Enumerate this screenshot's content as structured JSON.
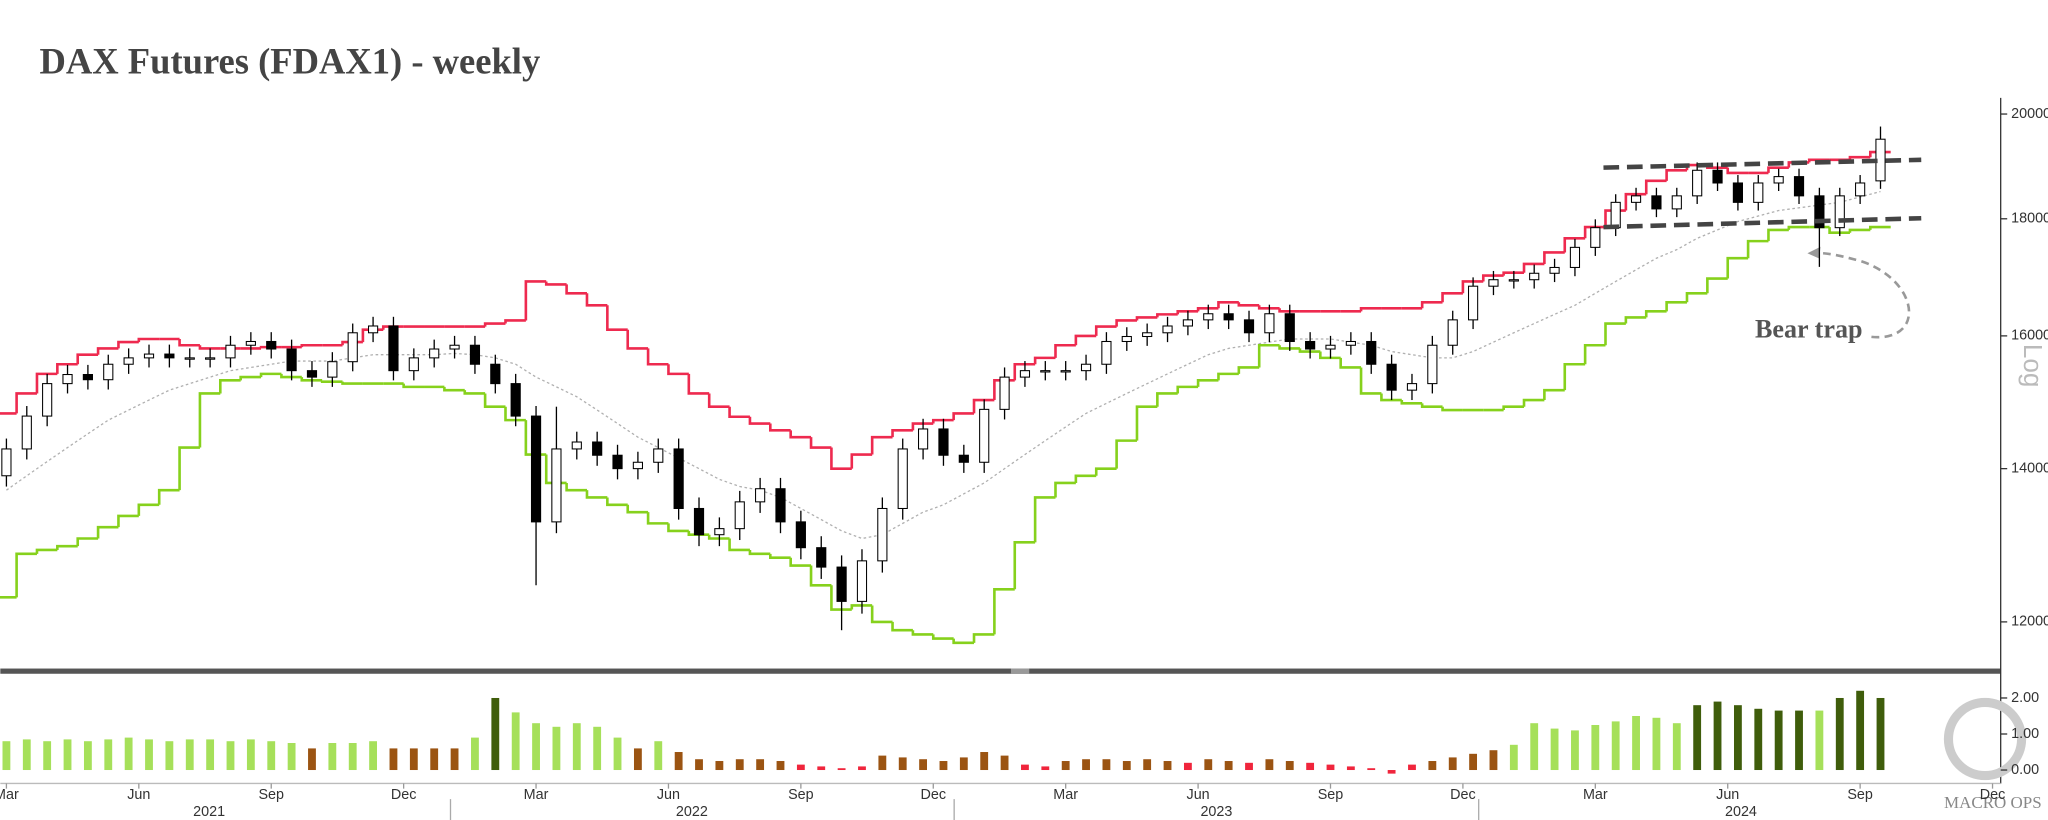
{
  "chart_data": {
    "type": "candlestick",
    "title": "DAX Futures (FDAX1) - weekly",
    "log_scale": true,
    "y_axis_label": "Log",
    "watermark": "MACRO OPS",
    "colors": {
      "up": "#ffffff",
      "down": "#000000",
      "wick": "#000000"
    },
    "x": [
      0,
      2,
      4,
      6,
      8,
      10,
      12,
      14,
      16,
      18,
      20,
      22,
      24,
      26,
      28,
      30,
      32,
      34,
      36,
      38,
      40,
      42,
      44,
      46,
      48,
      50,
      52,
      54,
      56,
      58,
      60,
      62,
      64,
      66,
      68,
      70,
      72,
      74,
      76,
      78,
      80,
      82,
      84,
      86,
      88,
      90,
      92,
      94,
      96,
      98,
      100,
      102,
      104,
      106,
      108,
      110,
      112,
      114,
      116,
      118,
      120,
      122,
      124,
      126,
      128,
      130,
      132,
      134,
      136,
      138,
      140,
      142,
      144,
      146,
      148,
      150,
      152,
      154,
      156,
      158,
      160,
      162,
      164,
      166,
      168,
      170,
      172,
      174,
      176,
      178,
      180,
      182,
      184
    ],
    "open": [
      13900,
      14280,
      14760,
      15250,
      15390,
      15310,
      15550,
      15650,
      15710,
      15650,
      15650,
      15650,
      15850,
      15910,
      15790,
      15450,
      15350,
      15590,
      16050,
      16160,
      15450,
      15650,
      15790,
      15850,
      15550,
      15250,
      14760,
      13270,
      14280,
      14380,
      14190,
      14000,
      14090,
      14280,
      13450,
      13100,
      13180,
      13540,
      13720,
      13270,
      12930,
      12680,
      12250,
      12760,
      13450,
      14280,
      14570,
      14190,
      14090,
      14860,
      15350,
      15450,
      15450,
      15450,
      15550,
      15910,
      15990,
      16050,
      16160,
      16260,
      16360,
      16260,
      16050,
      16360,
      15910,
      15790,
      15850,
      15910,
      15550,
      15150,
      15250,
      15850,
      16260,
      16820,
      16930,
      16930,
      17040,
      17140,
      17490,
      17840,
      18300,
      18420,
      18180,
      18420,
      18900,
      18660,
      18300,
      18660,
      18780,
      18420,
      17840,
      18420,
      18700
    ],
    "high": [
      14430,
      14910,
      15400,
      15540,
      15540,
      15700,
      15800,
      15860,
      15860,
      15800,
      15800,
      16000,
      16060,
      16060,
      15940,
      15600,
      15740,
      16200,
      16310,
      16310,
      15800,
      15940,
      16000,
      16000,
      15700,
      15400,
      14910,
      14900,
      14530,
      14530,
      14340,
      14240,
      14430,
      14430,
      13600,
      13330,
      13690,
      13870,
      13870,
      13420,
      13080,
      12830,
      12910,
      13600,
      14430,
      14720,
      14720,
      14340,
      15010,
      15500,
      15600,
      15600,
      15600,
      15700,
      16060,
      16140,
      16200,
      16310,
      16410,
      16510,
      16510,
      16410,
      16510,
      16510,
      16060,
      16000,
      16060,
      16060,
      15700,
      15400,
      16000,
      16410,
      16970,
      17080,
      17080,
      17190,
      17290,
      17640,
      17990,
      18450,
      18570,
      18570,
      18570,
      19050,
      19050,
      18810,
      18810,
      18930,
      18930,
      18570,
      18570,
      18810,
      19750
    ],
    "low": [
      13750,
      14130,
      14610,
      15100,
      15160,
      15160,
      15400,
      15500,
      15500,
      15500,
      15500,
      15500,
      15700,
      15640,
      15300,
      15200,
      15200,
      15440,
      15900,
      15300,
      15300,
      15500,
      15640,
      15400,
      15100,
      14610,
      12450,
      13120,
      14130,
      14040,
      13850,
      13850,
      13940,
      13300,
      12950,
      12950,
      13030,
      13390,
      13120,
      12780,
      12530,
      11900,
      12100,
      12610,
      13300,
      14130,
      14040,
      13940,
      13940,
      14710,
      15200,
      15300,
      15300,
      15300,
      15400,
      15760,
      15840,
      15900,
      16010,
      16110,
      16110,
      15900,
      15900,
      15760,
      15640,
      15640,
      15700,
      15400,
      15000,
      15000,
      15100,
      15700,
      16110,
      16670,
      16780,
      16780,
      16890,
      16990,
      17340,
      17690,
      18150,
      18030,
      18030,
      18270,
      18510,
      18150,
      18150,
      18510,
      18270,
      17150,
      17690,
      18270,
      18550
    ],
    "close": [
      14280,
      14760,
      15250,
      15390,
      15310,
      15550,
      15650,
      15710,
      15650,
      15650,
      15650,
      15850,
      15910,
      15790,
      15450,
      15350,
      15590,
      16050,
      16160,
      15450,
      15650,
      15790,
      15850,
      15550,
      15250,
      14760,
      13270,
      14280,
      14380,
      14190,
      14000,
      14090,
      14280,
      13450,
      13100,
      13180,
      13540,
      13720,
      13270,
      12930,
      12680,
      12250,
      12760,
      13450,
      14280,
      14570,
      14190,
      14090,
      14860,
      15350,
      15450,
      15450,
      15450,
      15550,
      15910,
      15990,
      16050,
      16160,
      16260,
      16360,
      16260,
      16050,
      16360,
      15910,
      15790,
      15850,
      15910,
      15550,
      15150,
      15250,
      15850,
      16260,
      16820,
      16930,
      16930,
      17040,
      17140,
      17490,
      17840,
      18300,
      18420,
      18180,
      18420,
      18900,
      18660,
      18300,
      18660,
      18780,
      18420,
      17840,
      18420,
      18660,
      19500
    ],
    "bands": {
      "upper": {
        "color": "#ee2a4f",
        "values": [
          14800,
          15100,
          15400,
          15550,
          15700,
          15800,
          15900,
          15950,
          15950,
          15850,
          15800,
          15800,
          15800,
          15820,
          15820,
          15850,
          15850,
          15900,
          16100,
          16150,
          16150,
          16150,
          16150,
          16150,
          16200,
          16250,
          16900,
          16850,
          16700,
          16500,
          16100,
          15800,
          15550,
          15400,
          15100,
          14900,
          14750,
          14650,
          14550,
          14450,
          14300,
          14000,
          14200,
          14450,
          14550,
          14650,
          14700,
          14800,
          15000,
          15300,
          15550,
          15650,
          15850,
          16000,
          16150,
          16250,
          16300,
          16350,
          16400,
          16450,
          16550,
          16500,
          16450,
          16400,
          16400,
          16400,
          16400,
          16450,
          16450,
          16450,
          16550,
          16700,
          16900,
          17000,
          17050,
          17200,
          17400,
          17650,
          17850,
          18150,
          18450,
          18700,
          18900,
          19000,
          18950,
          18850,
          18850,
          18950,
          19050,
          19100,
          19100,
          19150,
          19250
        ]
      },
      "lower": {
        "color": "#86d11c",
        "values": [
          12300,
          12850,
          12900,
          12950,
          13050,
          13200,
          13350,
          13500,
          13700,
          14300,
          15100,
          15300,
          15350,
          15400,
          15350,
          15300,
          15280,
          15250,
          15250,
          15250,
          15200,
          15200,
          15150,
          15100,
          14900,
          14700,
          14200,
          13800,
          13700,
          13600,
          13500,
          13400,
          13250,
          13150,
          13100,
          13050,
          12900,
          12850,
          12800,
          12700,
          12450,
          12150,
          12200,
          12000,
          11900,
          11850,
          11800,
          11750,
          11850,
          12400,
          13000,
          13600,
          13800,
          13900,
          14000,
          14400,
          14900,
          15100,
          15200,
          15300,
          15400,
          15500,
          15850,
          15800,
          15750,
          15650,
          15500,
          15100,
          15000,
          14950,
          14900,
          14850,
          14850,
          14850,
          14900,
          15000,
          15150,
          15550,
          15850,
          16200,
          16300,
          16400,
          16550,
          16700,
          16950,
          17300,
          17600,
          17800,
          17850,
          17850,
          17750,
          17800,
          17850
        ]
      },
      "ma": {
        "color": "#b0b0b0",
        "values": [
          13700,
          13900,
          14100,
          14300,
          14500,
          14700,
          14850,
          15000,
          15150,
          15250,
          15350,
          15450,
          15500,
          15550,
          15600,
          15600,
          15600,
          15650,
          15700,
          15700,
          15700,
          15700,
          15720,
          15700,
          15650,
          15550,
          15350,
          15200,
          15050,
          14850,
          14650,
          14450,
          14300,
          14150,
          14000,
          13850,
          13750,
          13700,
          13600,
          13450,
          13300,
          13150,
          13050,
          13100,
          13250,
          13400,
          13500,
          13650,
          13800,
          14000,
          14200,
          14400,
          14600,
          14800,
          14950,
          15100,
          15250,
          15400,
          15550,
          15700,
          15800,
          15850,
          15900,
          15950,
          15950,
          15950,
          15900,
          15850,
          15750,
          15700,
          15650,
          15650,
          15750,
          15900,
          16050,
          16200,
          16350,
          16500,
          16700,
          16900,
          17100,
          17300,
          17450,
          17650,
          17800,
          17950,
          18050,
          18150,
          18200,
          18250,
          18300,
          18400,
          18500
        ]
      }
    },
    "xlim": [
      -0.6,
      195.8
    ],
    "ylim": [
      11450,
      20300
    ],
    "yticks": [
      12000,
      14000,
      16000,
      18000,
      20000
    ],
    "xticks": [
      {
        "value": 0,
        "label": "Mar"
      },
      {
        "value": 13,
        "label": "Jun"
      },
      {
        "value": 26,
        "label": "Sep"
      },
      {
        "value": 39,
        "label": "Dec"
      },
      {
        "value": 52,
        "label": "Mar"
      },
      {
        "value": 65,
        "label": "Jun"
      },
      {
        "value": 78,
        "label": "Sep"
      },
      {
        "value": 91,
        "label": "Dec"
      },
      {
        "value": 104,
        "label": "Mar"
      },
      {
        "value": 117,
        "label": "Jun"
      },
      {
        "value": 130,
        "label": "Sep"
      },
      {
        "value": 143,
        "label": "Dec"
      },
      {
        "value": 156,
        "label": "Mar"
      },
      {
        "value": 169,
        "label": "Jun"
      },
      {
        "value": 182,
        "label": "Sep"
      },
      {
        "value": 195,
        "label": "Dec"
      }
    ],
    "year_ticks": [
      {
        "value": 19.9,
        "label": "2021"
      },
      {
        "value": 67.3,
        "label": "2022"
      },
      {
        "value": 118.8,
        "label": "2023"
      },
      {
        "value": 170.3,
        "label": "2024"
      }
    ],
    "annotations": {
      "text": "Bear trap",
      "lines": [
        {
          "x": [
            156.8,
            188
          ],
          "y": [
            18950,
            19100
          ]
        },
        {
          "x": [
            156.8,
            188
          ],
          "y": [
            17850,
            18010
          ]
        }
      ]
    },
    "histogram": {
      "values": [
        0.8,
        0.85,
        0.8,
        0.85,
        0.8,
        0.85,
        0.9,
        0.85,
        0.8,
        0.85,
        0.85,
        0.8,
        0.85,
        0.8,
        0.75,
        0.6,
        0.75,
        0.75,
        0.8,
        0.6,
        0.6,
        0.6,
        0.6,
        0.9,
        2.0,
        1.6,
        1.3,
        1.2,
        1.3,
        1.2,
        0.9,
        0.6,
        0.8,
        0.5,
        0.3,
        0.25,
        0.3,
        0.3,
        0.25,
        0.15,
        0.1,
        0.05,
        0.1,
        0.4,
        0.35,
        0.3,
        0.25,
        0.35,
        0.5,
        0.4,
        0.15,
        0.1,
        0.25,
        0.3,
        0.3,
        0.25,
        0.3,
        0.25,
        0.2,
        0.3,
        0.25,
        0.2,
        0.3,
        0.25,
        0.2,
        0.15,
        0.1,
        0.05,
        -0.1,
        0.15,
        0.25,
        0.35,
        0.45,
        0.55,
        0.7,
        1.3,
        1.15,
        1.1,
        1.25,
        1.35,
        1.5,
        1.45,
        1.3,
        1.8,
        1.9,
        1.8,
        1.7,
        1.65,
        1.65,
        1.65,
        2.0,
        2.2,
        2.0
      ],
      "colors": [
        "#a6e05a",
        "#a6e05a",
        "#a6e05a",
        "#a6e05a",
        "#a6e05a",
        "#a6e05a",
        "#a6e05a",
        "#a6e05a",
        "#a6e05a",
        "#a6e05a",
        "#a6e05a",
        "#a6e05a",
        "#a6e05a",
        "#a6e05a",
        "#a6e05a",
        "#9b5412",
        "#a6e05a",
        "#a6e05a",
        "#a6e05a",
        "#9b5412",
        "#9b5412",
        "#9b5412",
        "#9b5412",
        "#a6e05a",
        "#3f5d0b",
        "#a6e05a",
        "#a6e05a",
        "#a6e05a",
        "#a6e05a",
        "#a6e05a",
        "#a6e05a",
        "#9b5412",
        "#a6e05a",
        "#9b5412",
        "#9b5412",
        "#9b5412",
        "#9b5412",
        "#9b5412",
        "#9b5412",
        "#f0253c",
        "#f0253c",
        "#f0253c",
        "#f0253c",
        "#9b5412",
        "#9b5412",
        "#9b5412",
        "#9b5412",
        "#9b5412",
        "#9b5412",
        "#9b5412",
        "#f0253c",
        "#f0253c",
        "#9b5412",
        "#9b5412",
        "#9b5412",
        "#9b5412",
        "#9b5412",
        "#9b5412",
        "#f0253c",
        "#9b5412",
        "#9b5412",
        "#f0253c",
        "#9b5412",
        "#9b5412",
        "#f0253c",
        "#f0253c",
        "#f0253c",
        "#f0253c",
        "#f0253c",
        "#f0253c",
        "#9b5412",
        "#9b5412",
        "#9b5412",
        "#9b5412",
        "#a6e05a",
        "#a6e05a",
        "#a6e05a",
        "#a6e05a",
        "#a6e05a",
        "#a6e05a",
        "#a6e05a",
        "#a6e05a",
        "#a6e05a",
        "#3f5d0b",
        "#3f5d0b",
        "#3f5d0b",
        "#3f5d0b",
        "#3f5d0b",
        "#3f5d0b",
        "#a6e05a",
        "#3f5d0b",
        "#3f5d0b",
        "#3f5d0b"
      ],
      "ylim": [
        -0.3,
        2.6
      ],
      "yticks": [
        {
          "value": 0,
          "label": "0.00"
        },
        {
          "value": 1,
          "label": "1.00"
        },
        {
          "value": 2,
          "label": "2.00"
        }
      ]
    }
  }
}
